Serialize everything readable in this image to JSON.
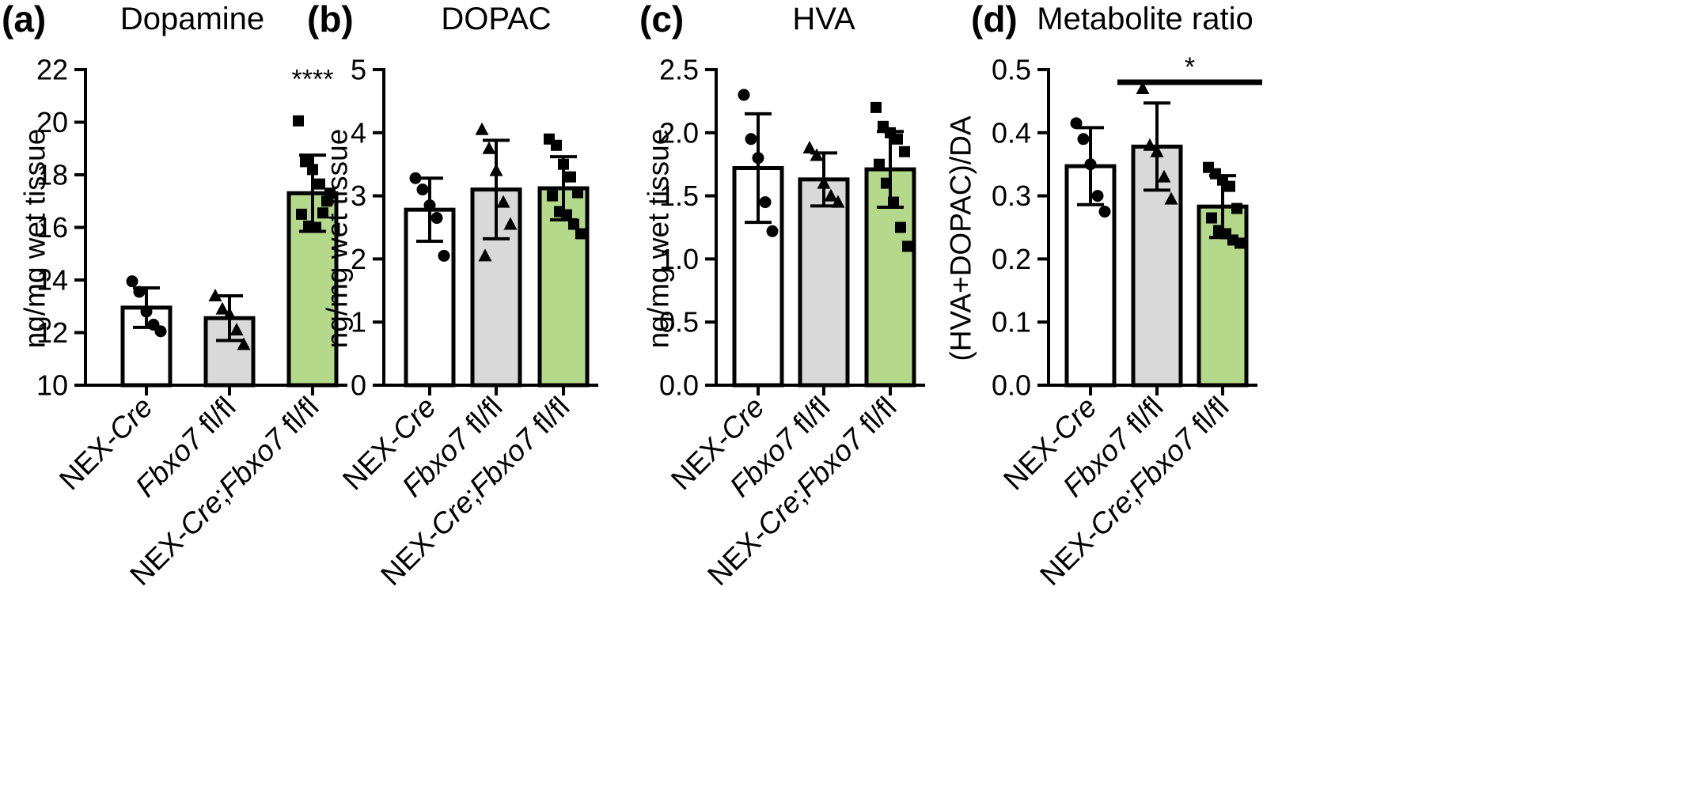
{
  "colors": {
    "bar_fill": [
      "#ffffff",
      "#d9d9d9",
      "#b5d98a"
    ],
    "axis": "#000000",
    "marker": "#000000"
  },
  "categories": [
    [
      {
        "text": "NEX-",
        "italic": false
      },
      {
        "text": "Cre",
        "italic": true
      }
    ],
    [
      {
        "text": "Fbxo7",
        "italic": true
      },
      {
        "text": " fl/fl",
        "italic": false
      }
    ],
    [
      {
        "text": "NEX-",
        "italic": false
      },
      {
        "text": "Cre",
        "italic": true
      },
      {
        "text": ";",
        "italic": false
      },
      {
        "text": "Fbxo7",
        "italic": true
      },
      {
        "text": " fl/fl",
        "italic": false
      }
    ]
  ],
  "marker_shapes": [
    "circle",
    "triangle",
    "square"
  ],
  "chart_data": [
    {
      "type": "bar",
      "panel_letter": "(a)",
      "title": "Dopamine",
      "ylabel": "ng/mg wet tissue",
      "ylim": [
        10,
        22
      ],
      "yticks": [
        10,
        12,
        14,
        16,
        18,
        20,
        22
      ],
      "tick_labels": [
        "10",
        "12",
        "14",
        "16",
        "18",
        "20",
        "22"
      ],
      "values": [
        12.95,
        12.55,
        17.3
      ],
      "sd": [
        0.75,
        0.85,
        1.45
      ],
      "points": [
        [
          13.95,
          13.55,
          12.8,
          12.3,
          12.05
        ],
        [
          13.4,
          12.9,
          12.7,
          12.1,
          11.55
        ],
        [
          20.05,
          18.5,
          18.2,
          17.65,
          17.0,
          16.5,
          16.05,
          16.0,
          16.55,
          17.3
        ]
      ],
      "significance": [
        {
          "label": "****",
          "over": 2,
          "y": 21.3
        }
      ]
    },
    {
      "type": "bar",
      "panel_letter": "(b)",
      "title": "DOPAC",
      "ylabel": "ng/mg wet tissue",
      "ylim": [
        0,
        5
      ],
      "yticks": [
        0,
        1,
        2,
        3,
        4,
        5
      ],
      "tick_labels": [
        "0",
        "1",
        "2",
        "3",
        "4",
        "5"
      ],
      "values": [
        2.78,
        3.1,
        3.12
      ],
      "sd": [
        0.5,
        0.78,
        0.5
      ],
      "points": [
        [
          3.28,
          3.1,
          2.85,
          2.65,
          2.05
        ],
        [
          4.05,
          3.75,
          3.4,
          2.9,
          2.55,
          2.05
        ],
        [
          3.9,
          3.8,
          3.5,
          3.3,
          3.05,
          3.0,
          2.75,
          2.7,
          2.55,
          2.4
        ]
      ],
      "significance": []
    },
    {
      "type": "bar",
      "panel_letter": "(c)",
      "title": "HVA",
      "ylabel": "ng/mg wet tissue",
      "ylim": [
        0,
        2.5
      ],
      "yticks": [
        0,
        0.5,
        1.0,
        1.5,
        2.0,
        2.5
      ],
      "tick_labels": [
        "0.0",
        "0.5",
        "1.0",
        "1.5",
        "2.0",
        "2.5"
      ],
      "values": [
        1.72,
        1.63,
        1.71
      ],
      "sd": [
        0.43,
        0.21,
        0.3
      ],
      "points": [
        [
          2.3,
          1.95,
          1.8,
          1.45,
          1.22
        ],
        [
          1.88,
          1.82,
          1.6,
          1.5,
          1.45
        ],
        [
          2.2,
          2.05,
          2.0,
          1.95,
          1.85,
          1.75,
          1.6,
          1.45,
          1.25,
          1.1
        ]
      ],
      "significance": []
    },
    {
      "type": "bar",
      "panel_letter": "(d)",
      "title": "Metabolite ratio",
      "ylabel": "(HVA+DOPAC)/DA",
      "ylim": [
        0,
        0.5
      ],
      "yticks": [
        0,
        0.1,
        0.2,
        0.3,
        0.4,
        0.5
      ],
      "tick_labels": [
        "0.0",
        "0.1",
        "0.2",
        "0.3",
        "0.4",
        "0.5"
      ],
      "values": [
        0.347,
        0.378,
        0.283
      ],
      "sd": [
        0.061,
        0.069,
        0.049
      ],
      "points": [
        [
          0.415,
          0.39,
          0.35,
          0.3,
          0.275
        ],
        [
          0.47,
          0.38,
          0.37,
          0.33,
          0.295
        ],
        [
          0.345,
          0.335,
          0.325,
          0.315,
          0.28,
          0.265,
          0.245,
          0.24,
          0.23,
          0.225
        ]
      ],
      "significance": [
        {
          "label": "*",
          "bar_from": 1,
          "bar_to": 2,
          "y": 0.49
        }
      ]
    }
  ]
}
